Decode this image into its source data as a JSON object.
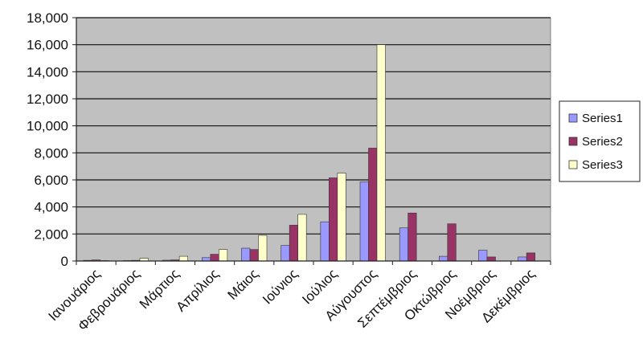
{
  "chart_data": {
    "type": "bar",
    "categories": [
      "Ιανουάριος",
      "Φεβρουάριος",
      "Μάρτιος",
      "Απρίλιος",
      "Μάιος",
      "Ιούνιος",
      "Ιούλιος",
      "Αύγουστος",
      "Σεπτέμβριος",
      "Οκτώβριος",
      "Νοέμβριος",
      "Δεκέμβριος"
    ],
    "series": [
      {
        "name": "Series1",
        "color": "#9999ff",
        "values": [
          50,
          30,
          60,
          250,
          950,
          1150,
          2900,
          5850,
          2450,
          350,
          800,
          300
        ]
      },
      {
        "name": "Series2",
        "color": "#993366",
        "values": [
          80,
          50,
          80,
          500,
          850,
          2650,
          6150,
          8350,
          3550,
          2750,
          300,
          600
        ]
      },
      {
        "name": "Series3",
        "color": "#ffffcc",
        "values": [
          30,
          200,
          350,
          850,
          1900,
          3450,
          6500,
          16000,
          0,
          0,
          0,
          0
        ]
      }
    ],
    "ylim": [
      0,
      18000
    ],
    "yticks": [
      0,
      2000,
      4000,
      6000,
      8000,
      10000,
      12000,
      14000,
      16000,
      18000
    ],
    "ytick_labels": [
      "0",
      "2,000",
      "4,000",
      "6,000",
      "8,000",
      "10,000",
      "12,000",
      "14,000",
      "16,000",
      "18,000"
    ],
    "title": "",
    "xlabel": "",
    "ylabel": "",
    "grid": true,
    "legend_position": "right",
    "plot_background": "#c0c0c0"
  }
}
